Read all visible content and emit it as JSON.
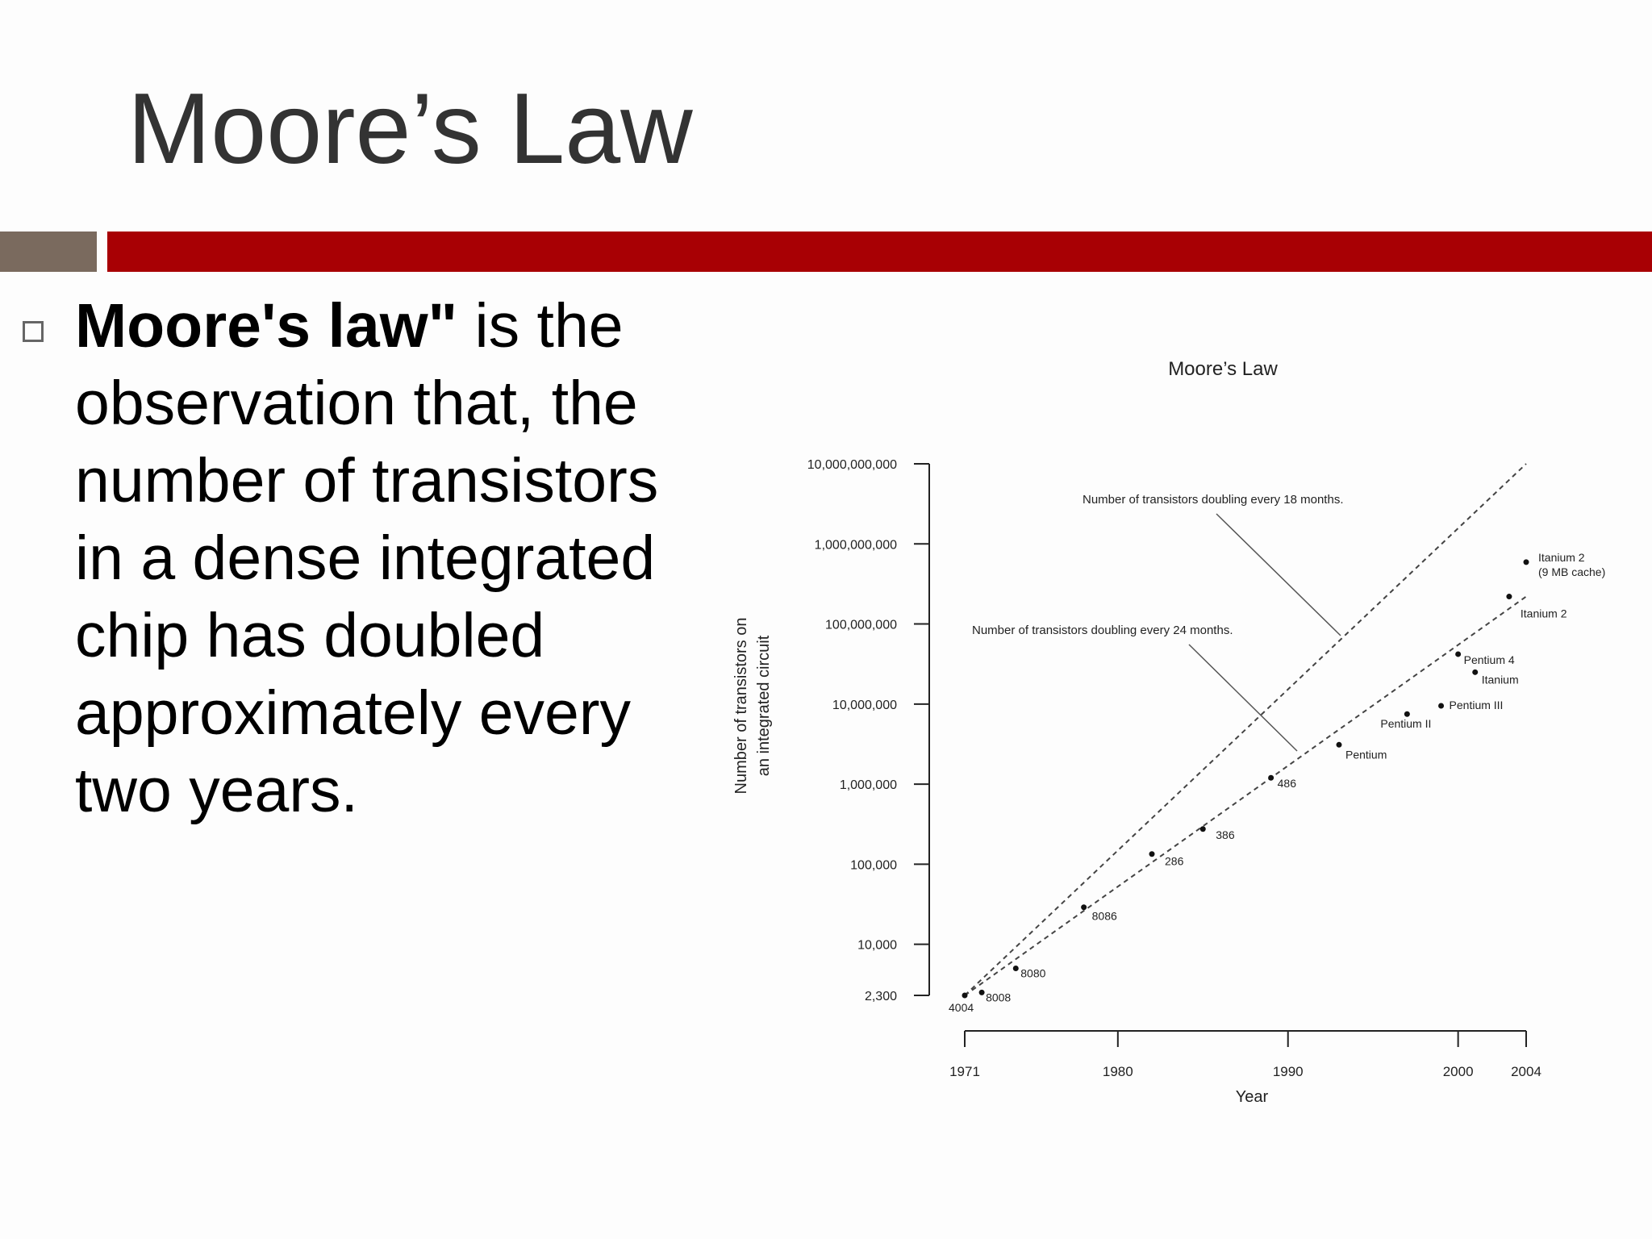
{
  "slide": {
    "title": "Moore’s Law",
    "bullet": {
      "bold_prefix": "Moore's law\"",
      "lines": [
        " is the",
        "observation that, the",
        "number of transistors",
        "in a dense integrated",
        "chip has doubled",
        "approximately every",
        "two years."
      ]
    },
    "colors": {
      "accent_bar": "#a80004",
      "small_bar": "#7a6a5e",
      "title": "#333333"
    }
  },
  "chart_data": {
    "type": "scatter",
    "title": "Moore’s Law",
    "xlabel": "Year",
    "ylabel_lines": [
      "Number of transistors on",
      "an integrated circuit"
    ],
    "yscale": "log",
    "xlim": [
      1971,
      2004
    ],
    "ylim": [
      2300,
      10000000000
    ],
    "x_ticks": [
      1971,
      1980,
      1990,
      2000,
      2004
    ],
    "y_ticks": [
      {
        "value": 2300,
        "label": "2,300"
      },
      {
        "value": 10000,
        "label": "10,000"
      },
      {
        "value": 100000,
        "label": "100,000"
      },
      {
        "value": 1000000,
        "label": "1,000,000"
      },
      {
        "value": 10000000,
        "label": "10,000,000"
      },
      {
        "value": 100000000,
        "label": "100,000,000"
      },
      {
        "value": 1000000000,
        "label": "1,000,000,000"
      },
      {
        "value": 10000000000,
        "label": "10,000,000,000"
      }
    ],
    "points": [
      {
        "name": "4004",
        "x": 1971,
        "y": 2300
      },
      {
        "name": "8008",
        "x": 1972,
        "y": 2500
      },
      {
        "name": "8080",
        "x": 1974,
        "y": 5000
      },
      {
        "name": "8086",
        "x": 1978,
        "y": 29000
      },
      {
        "name": "286",
        "x": 1982,
        "y": 134000
      },
      {
        "name": "386",
        "x": 1985,
        "y": 275000
      },
      {
        "name": "486",
        "x": 1989,
        "y": 1200000
      },
      {
        "name": "Pentium",
        "x": 1993,
        "y": 3100000
      },
      {
        "name": "Pentium II",
        "x": 1997,
        "y": 7500000
      },
      {
        "name": "Pentium III",
        "x": 1999,
        "y": 9500000
      },
      {
        "name": "Pentium 4",
        "x": 2000,
        "y": 42000000
      },
      {
        "name": "Itanium",
        "x": 2001,
        "y": 25000000
      },
      {
        "name": "Itanium 2",
        "x": 2003,
        "y": 220000000
      },
      {
        "name": "Itanium 2\n(9 MB cache)",
        "x": 2004,
        "y": 592000000
      }
    ],
    "trend_lines": [
      {
        "label": "Number of transistors doubling every 18 months.",
        "from": {
          "x": 1971,
          "y": 2300
        },
        "to": {
          "x": 2004,
          "y": 10000000000
        }
      },
      {
        "label": "Number of transistors doubling every 24 months.",
        "from": {
          "x": 1971,
          "y": 2300
        },
        "to": {
          "x": 2004,
          "y": 220000000
        }
      }
    ]
  }
}
